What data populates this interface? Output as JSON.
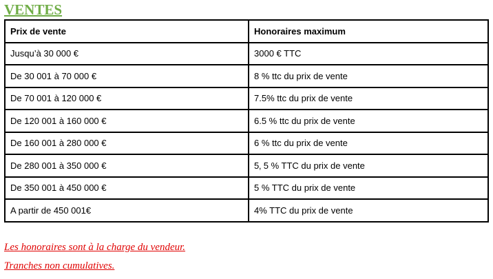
{
  "title": "VENTES",
  "table": {
    "headers": [
      "Prix de vente",
      "Honoraires maximum"
    ],
    "rows": [
      [
        "Jusqu’à 30 000 €",
        "3000 € TTC"
      ],
      [
        "De 30 001 à 70 000 €",
        "8 % ttc du prix de vente"
      ],
      [
        "De 70 001 à 120 000 €",
        "7.5% ttc du prix de vente"
      ],
      [
        "De 120 001 à 160 000 €",
        "6.5 % ttc du prix de vente"
      ],
      [
        "De 160 001 à 280 000 €",
        "6 % ttc du prix de vente"
      ],
      [
        "De 280 001 à 350 000 €",
        "5‚ 5 % TTC du prix de vente"
      ],
      [
        "De 350 001 à 450 000 €",
        "5 % TTC du prix de vente"
      ],
      [
        "A partir de 450 001€",
        "4% TTC du prix de vente"
      ]
    ]
  },
  "notes": [
    "Les honoraires sont à la charge du vendeur.",
    "Tranches non cumulatives."
  ],
  "colors": {
    "title": "#70ad47",
    "notes": "#e00000"
  }
}
